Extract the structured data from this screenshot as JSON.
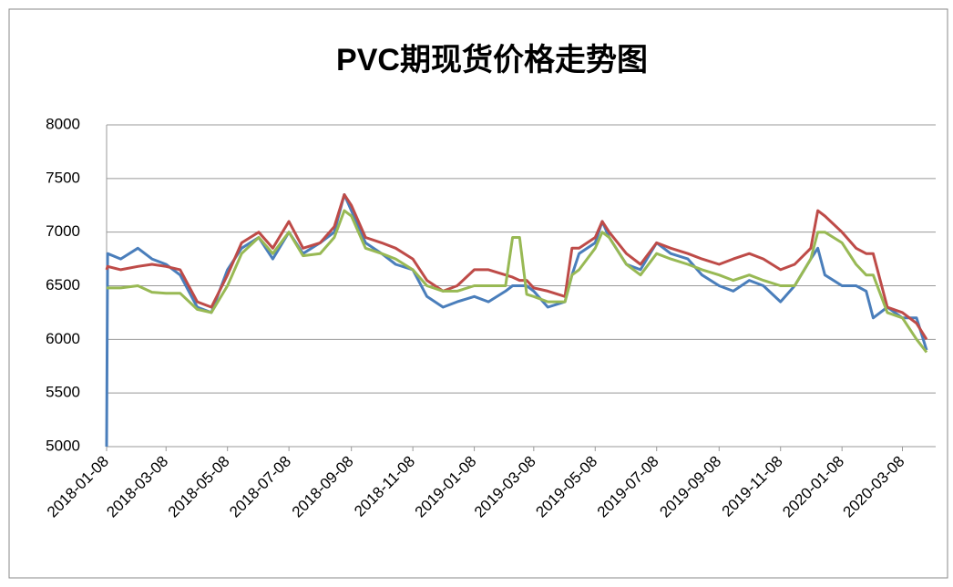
{
  "chart_data": {
    "type": "line",
    "title": "PVC期现货价格走势图",
    "x": [
      "2018-01-08",
      "2018-01-09",
      "2018-01-22",
      "2018-02-08",
      "2018-02-22",
      "2018-03-08",
      "2018-03-22",
      "2018-04-08",
      "2018-04-22",
      "2018-05-08",
      "2018-05-22",
      "2018-06-08",
      "2018-06-22",
      "2018-07-08",
      "2018-07-22",
      "2018-08-08",
      "2018-08-22",
      "2018-09-01",
      "2018-09-08",
      "2018-09-22",
      "2018-10-08",
      "2018-10-22",
      "2018-11-08",
      "2018-11-22",
      "2018-12-08",
      "2018-12-22",
      "2019-01-08",
      "2019-01-22",
      "2019-02-08",
      "2019-02-15",
      "2019-02-22",
      "2019-03-01",
      "2019-03-08",
      "2019-03-22",
      "2019-04-08",
      "2019-04-15",
      "2019-04-22",
      "2019-05-08",
      "2019-05-15",
      "2019-05-22",
      "2019-06-08",
      "2019-06-22",
      "2019-07-08",
      "2019-07-22",
      "2019-08-08",
      "2019-08-22",
      "2019-09-08",
      "2019-09-22",
      "2019-10-08",
      "2019-10-22",
      "2019-11-08",
      "2019-11-22",
      "2019-12-08",
      "2019-12-15",
      "2019-12-22",
      "2020-01-08",
      "2020-01-22",
      "2020-02-01",
      "2020-02-08",
      "2020-02-22",
      "2020-03-08",
      "2020-03-22",
      "2020-04-01"
    ],
    "series": [
      {
        "color": "#4a7ebb",
        "values": [
          5000,
          6800,
          6750,
          6850,
          6750,
          6700,
          6600,
          6300,
          6250,
          6650,
          6850,
          6950,
          6750,
          7000,
          6800,
          6900,
          7000,
          7350,
          7200,
          6900,
          6800,
          6700,
          6650,
          6400,
          6300,
          6350,
          6400,
          6350,
          6450,
          6500,
          6500,
          6500,
          6450,
          6300,
          6350,
          6600,
          6800,
          6900,
          7100,
          6950,
          6700,
          6650,
          6900,
          6800,
          6750,
          6600,
          6500,
          6450,
          6550,
          6500,
          6350,
          6500,
          6750,
          6850,
          6600,
          6500,
          6500,
          6450,
          6200,
          6300,
          6200,
          6200,
          5900
        ]
      },
      {
        "color": "#be4b48",
        "values": [
          6650,
          6680,
          6650,
          6680,
          6700,
          6680,
          6650,
          6350,
          6300,
          6600,
          6900,
          7000,
          6850,
          7100,
          6850,
          6900,
          7050,
          7350,
          7250,
          6950,
          6900,
          6850,
          6750,
          6550,
          6450,
          6500,
          6650,
          6650,
          6600,
          6580,
          6550,
          6550,
          6480,
          6450,
          6400,
          6850,
          6850,
          6950,
          7100,
          7000,
          6800,
          6700,
          6900,
          6850,
          6800,
          6750,
          6700,
          6750,
          6800,
          6750,
          6650,
          6700,
          6850,
          7200,
          7150,
          7000,
          6850,
          6800,
          6800,
          6300,
          6250,
          6150,
          6000
        ]
      },
      {
        "color": "#98b954",
        "values": [
          6480,
          6480,
          6480,
          6500,
          6440,
          6430,
          6430,
          6280,
          6250,
          6500,
          6800,
          6950,
          6800,
          7000,
          6780,
          6800,
          6950,
          7200,
          7150,
          6850,
          6800,
          6750,
          6650,
          6500,
          6450,
          6450,
          6500,
          6500,
          6500,
          6950,
          6950,
          6420,
          6400,
          6350,
          6350,
          6600,
          6650,
          6850,
          7000,
          6950,
          6700,
          6600,
          6800,
          6750,
          6700,
          6650,
          6600,
          6550,
          6600,
          6550,
          6500,
          6500,
          6750,
          7000,
          7000,
          6900,
          6700,
          6600,
          6600,
          6250,
          6200,
          6000,
          5880
        ]
      }
    ],
    "xlim": [
      "2018-01-08",
      "2020-04-10"
    ],
    "xticks": [
      "2018-01-08",
      "2018-03-08",
      "2018-05-08",
      "2018-07-08",
      "2018-09-08",
      "2018-11-08",
      "2019-01-08",
      "2019-03-08",
      "2019-05-08",
      "2019-07-08",
      "2019-09-08",
      "2019-11-08",
      "2020-01-08",
      "2020-03-08"
    ],
    "ylim": [
      5000,
      8000
    ],
    "yticks": [
      5000,
      5500,
      6000,
      6500,
      7000,
      7500,
      8000
    ],
    "grid": true
  }
}
